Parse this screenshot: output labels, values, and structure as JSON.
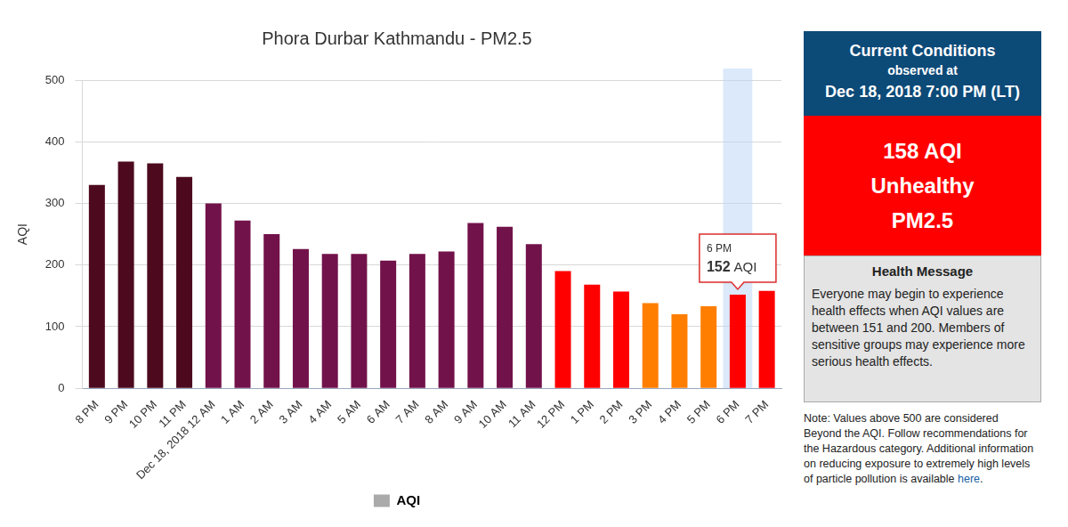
{
  "chart_data": {
    "type": "bar",
    "title": "Phora Durbar Kathmandu - PM2.5",
    "y_label": "AQI",
    "categories": [
      "8 PM",
      "9 PM",
      "10 PM",
      "11 PM",
      "Dec 18, 2018 12 AM",
      "1 AM",
      "2 AM",
      "3 AM",
      "4 AM",
      "5 AM",
      "6 AM",
      "7 AM",
      "8 AM",
      "9 AM",
      "10 AM",
      "11 AM",
      "12 PM",
      "1 PM",
      "2 PM",
      "3 PM",
      "4 PM",
      "5 PM",
      "6 PM",
      "7 PM"
    ],
    "series": [
      {
        "name": "AQI",
        "color": "#aaaaaa",
        "colors": [
          "#4d0a1e",
          "#4d0a1e",
          "#4d0a1e",
          "#4d0a1e",
          "#72124a",
          "#72124a",
          "#72124a",
          "#72124a",
          "#72124a",
          "#72124a",
          "#72124a",
          "#72124a",
          "#72124a",
          "#72124a",
          "#72124a",
          "#72124a",
          "#ff0000",
          "#ff0000",
          "#ff0000",
          "#ff7e00",
          "#ff7e00",
          "#ff7e00",
          "#ff0000",
          "#ff0000"
        ],
        "values": [
          330,
          368,
          365,
          343,
          300,
          272,
          250,
          226,
          218,
          218,
          207,
          218,
          222,
          268,
          262,
          234,
          190,
          168,
          157,
          138,
          120,
          133,
          152,
          158
        ]
      }
    ],
    "ylim": [
      0,
      500
    ],
    "yticks": [
      0,
      100,
      200,
      300,
      400,
      500
    ],
    "grid": true,
    "legend": "bottom",
    "annotations": [
      {
        "category": "6 PM",
        "value": 152,
        "unit": "AQI"
      }
    ]
  },
  "panel": {
    "header": {
      "title": "Current Conditions",
      "subtitle": "observed at",
      "time": "Dec 18, 2018 7:00 PM (LT)"
    },
    "current": {
      "value": 158,
      "unit": "AQI",
      "category": "Unhealthy",
      "pollutant": "PM2.5",
      "color": "#ff0000"
    },
    "health_message": {
      "title": "Health Message",
      "text": "Everyone may begin to experience health effects when AQI values are between 151 and 200. Members of sensitive groups may experience more serious health effects."
    },
    "note": {
      "text": "Note: Values above 500 are considered Beyond the AQI. Follow recommendations for the Hazardous category. Additional information on reducing exposure to extremely high levels of particle pollution is available ",
      "link": "here",
      "end": "."
    }
  }
}
